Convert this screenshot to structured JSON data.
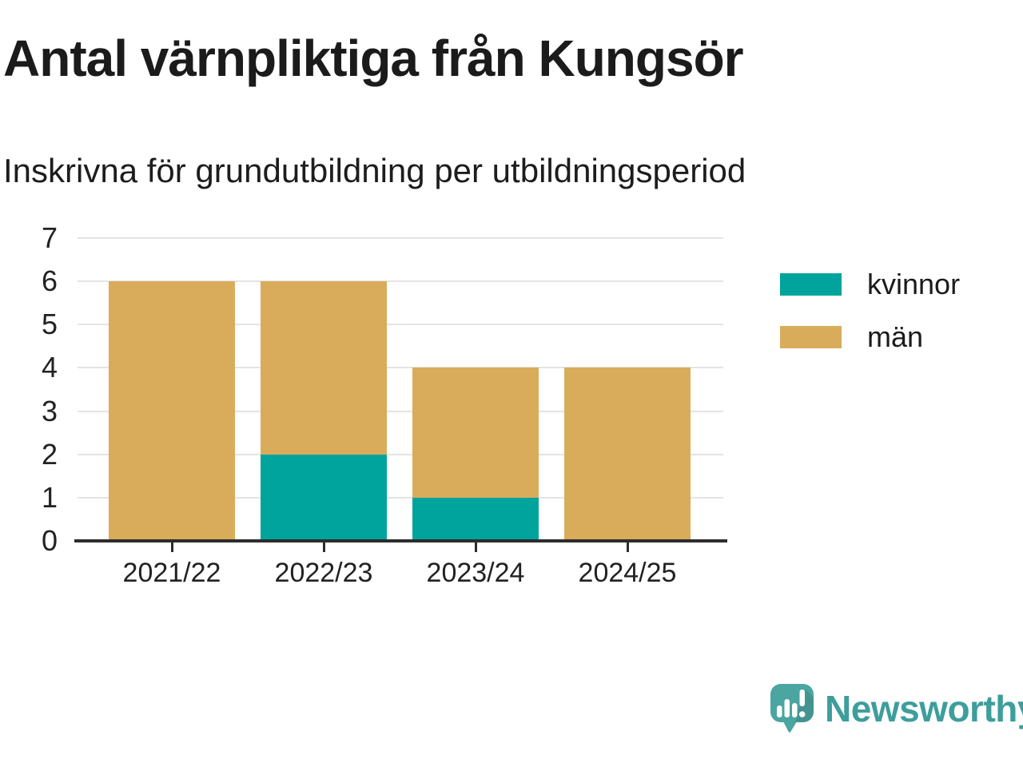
{
  "chart_data": {
    "type": "bar",
    "stacked": true,
    "title": "Antal värnpliktiga från Kungsör",
    "subtitle": "Inskrivna för grundutbildning per utbildningsperiod",
    "categories": [
      "2021/22",
      "2022/23",
      "2023/24",
      "2024/25"
    ],
    "series": [
      {
        "name": "kvinnor",
        "color": "#00a49c",
        "values": [
          0,
          2,
          1,
          0
        ]
      },
      {
        "name": "män",
        "color": "#d9ac5c",
        "values": [
          6,
          4,
          3,
          4
        ]
      }
    ],
    "totals": [
      6,
      6,
      4,
      4
    ],
    "ylim": [
      0,
      7
    ],
    "yticks": [
      0,
      1,
      2,
      3,
      4,
      5,
      6,
      7
    ],
    "grid": true,
    "legend_position": "right",
    "gridline_color": "#e4e4e4",
    "axis_color": "#2d2d2d"
  },
  "branding": {
    "logo_text": "Newsworthy",
    "logo_icon": "newsworthy-speech-bubble-chart-icon",
    "icon_color": "#4ba5a0",
    "text_color": "#3d9e9c"
  }
}
